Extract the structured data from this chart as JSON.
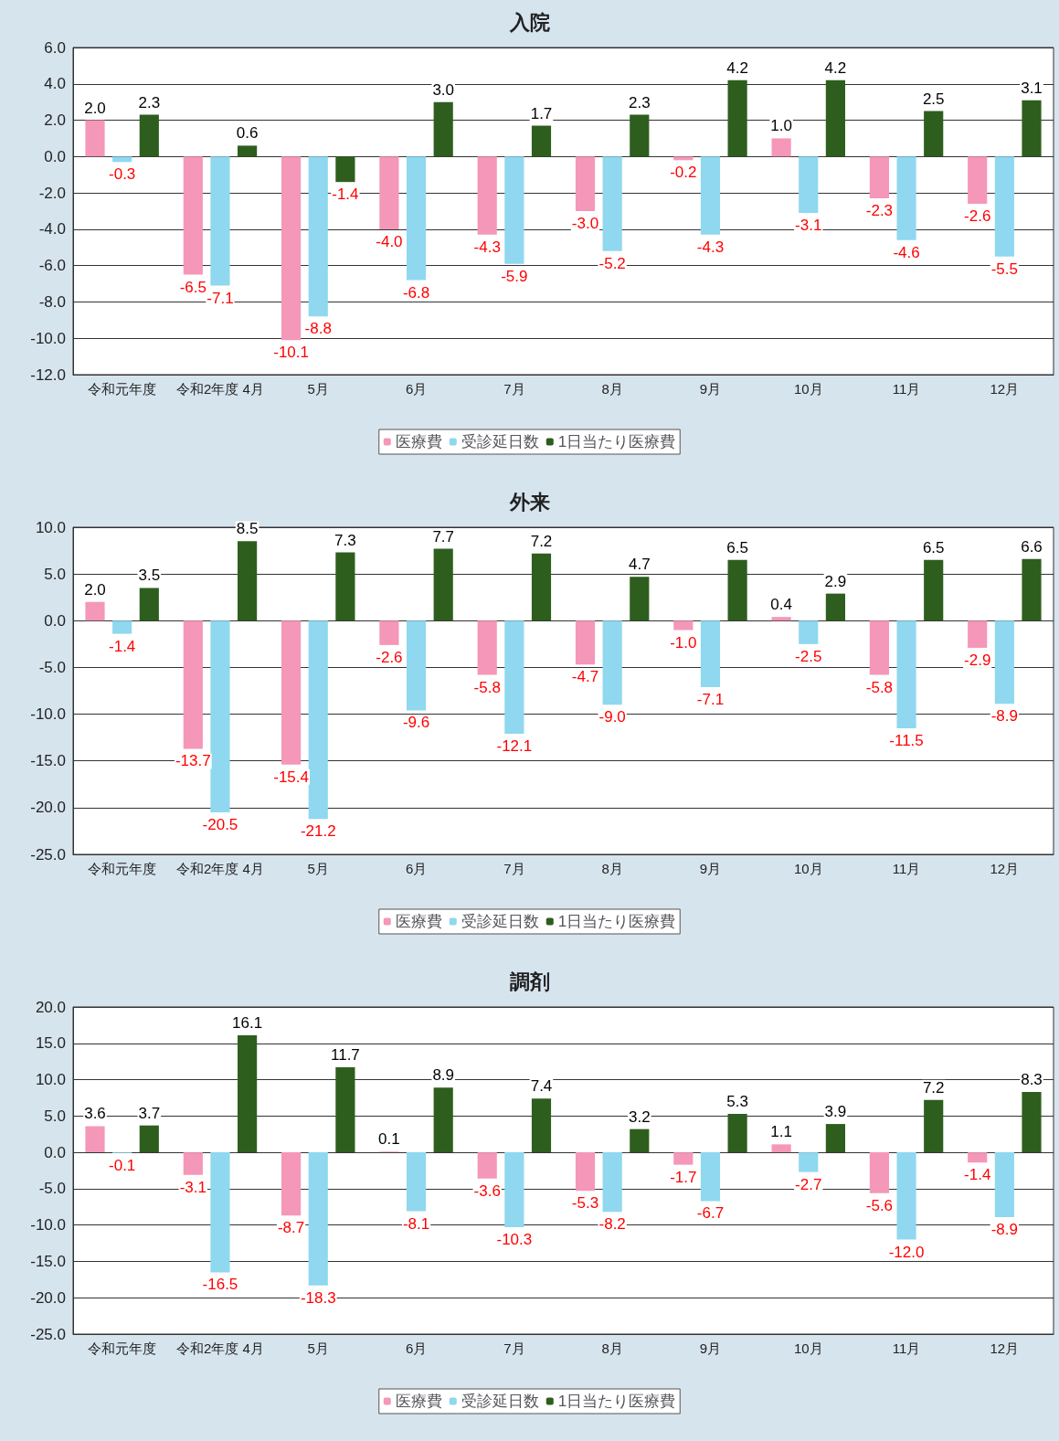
{
  "chart_data": [
    {
      "type": "bar",
      "title": "入院",
      "categories": [
        "令和元年度",
        "令和2年度 4月",
        "5月",
        "6月",
        "7月",
        "8月",
        "9月",
        "10月",
        "11月",
        "12月"
      ],
      "ylim": [
        -12,
        6
      ],
      "yticks": [
        {
          "value": -12,
          "label": "-12.0"
        },
        {
          "value": -10,
          "label": "-10.0"
        },
        {
          "value": -8,
          "label": "-8.0"
        },
        {
          "value": -6,
          "label": "-6.0"
        },
        {
          "value": -4,
          "label": "-4.0"
        },
        {
          "value": -2,
          "label": "-2.0"
        },
        {
          "value": 0,
          "label": "0.0"
        },
        {
          "value": 2,
          "label": "2.0"
        },
        {
          "value": 4,
          "label": "4.0"
        },
        {
          "value": 6,
          "label": "6.0"
        }
      ],
      "grid": "y",
      "legend": "bottom",
      "series": [
        {
          "name": "医療費",
          "color": "#f497b8",
          "values": [
            2.0,
            -6.5,
            -10.1,
            -4.0,
            -4.3,
            -3.0,
            -0.2,
            1.0,
            -2.3,
            -2.6
          ],
          "value_labels": [
            "2.0",
            "-6.5",
            "-10.1",
            "-4.0",
            "-4.3",
            "-3.0",
            "-0.2",
            "1.0",
            "-2.3",
            "-2.6"
          ]
        },
        {
          "name": "受診延日数",
          "color": "#8fd8ef",
          "values": [
            -0.3,
            -7.1,
            -8.8,
            -6.8,
            -5.9,
            -5.2,
            -4.3,
            -3.1,
            -4.6,
            -5.5
          ],
          "value_labels": [
            "-0.3",
            "-7.1",
            "-8.8",
            "-6.8",
            "-5.9",
            "-5.2",
            "-4.3",
            "-3.1",
            "-4.6",
            "-5.5"
          ]
        },
        {
          "name": "1日当たり医療費",
          "color": "#2e5e1e",
          "values": [
            2.3,
            0.6,
            -1.4,
            3.0,
            1.7,
            2.3,
            4.2,
            4.2,
            2.5,
            3.1
          ],
          "value_labels": [
            "2.3",
            "0.6",
            "-1.4",
            "3.0",
            "1.7",
            "2.3",
            "4.2",
            "4.2",
            "2.5",
            "3.1"
          ]
        }
      ]
    },
    {
      "type": "bar",
      "title": "外来",
      "categories": [
        "令和元年度",
        "令和2年度 4月",
        "5月",
        "6月",
        "7月",
        "8月",
        "9月",
        "10月",
        "11月",
        "12月"
      ],
      "ylim": [
        -25,
        10
      ],
      "yticks": [
        {
          "value": -25,
          "label": "-25.0"
        },
        {
          "value": -20,
          "label": "-20.0"
        },
        {
          "value": -15,
          "label": "-15.0"
        },
        {
          "value": -10,
          "label": "-10.0"
        },
        {
          "value": -5,
          "label": "-5.0"
        },
        {
          "value": 0,
          "label": "0.0"
        },
        {
          "value": 5,
          "label": "5.0"
        },
        {
          "value": 10,
          "label": "10.0"
        }
      ],
      "grid": "y",
      "legend": "bottom",
      "series": [
        {
          "name": "医療費",
          "color": "#f497b8",
          "values": [
            2.0,
            -13.7,
            -15.4,
            -2.6,
            -5.8,
            -4.7,
            -1.0,
            0.4,
            -5.8,
            -2.9
          ],
          "value_labels": [
            "2.0",
            "-13.7",
            "-15.4",
            "-2.6",
            "-5.8",
            "-4.7",
            "-1.0",
            "0.4",
            "-5.8",
            "-2.9"
          ]
        },
        {
          "name": "受診延日数",
          "color": "#8fd8ef",
          "values": [
            -1.4,
            -20.5,
            -21.2,
            -9.6,
            -12.1,
            -9.0,
            -7.1,
            -2.5,
            -11.5,
            -8.9
          ],
          "value_labels": [
            "-1.4",
            "-20.5",
            "-21.2",
            "-9.6",
            "-12.1",
            "-9.0",
            "-7.1",
            "-2.5",
            "-11.5",
            "-8.9"
          ]
        },
        {
          "name": "1日当たり医療費",
          "color": "#2e5e1e",
          "values": [
            3.5,
            8.5,
            7.3,
            7.7,
            7.2,
            4.7,
            6.5,
            2.9,
            6.5,
            6.6
          ],
          "value_labels": [
            "3.5",
            "8.5",
            "7.3",
            "7.7",
            "7.2",
            "4.7",
            "6.5",
            "2.9",
            "6.5",
            "6.6"
          ]
        }
      ]
    },
    {
      "type": "bar",
      "title": "調剤",
      "categories": [
        "令和元年度",
        "令和2年度 4月",
        "5月",
        "6月",
        "7月",
        "8月",
        "9月",
        "10月",
        "11月",
        "12月"
      ],
      "ylim": [
        -25,
        20
      ],
      "yticks": [
        {
          "value": -25,
          "label": "-25.0"
        },
        {
          "value": -20,
          "label": "-20.0"
        },
        {
          "value": -15,
          "label": "-15.0"
        },
        {
          "value": -10,
          "label": "-10.0"
        },
        {
          "value": -5,
          "label": "-5.0"
        },
        {
          "value": 0,
          "label": "0.0"
        },
        {
          "value": 5,
          "label": "5.0"
        },
        {
          "value": 10,
          "label": "10.0"
        },
        {
          "value": 15,
          "label": "15.0"
        },
        {
          "value": 20,
          "label": "20.0"
        }
      ],
      "grid": "y",
      "legend": "bottom",
      "series": [
        {
          "name": "医療費",
          "color": "#f497b8",
          "values": [
            3.6,
            -3.1,
            -8.7,
            0.1,
            -3.6,
            -5.3,
            -1.7,
            1.1,
            -5.6,
            -1.4
          ],
          "value_labels": [
            "3.6",
            "-3.1",
            "-8.7",
            "0.1",
            "-3.6",
            "-5.3",
            "-1.7",
            "1.1",
            "-5.6",
            "-1.4"
          ]
        },
        {
          "name": "受診延日数",
          "color": "#8fd8ef",
          "values": [
            -0.1,
            -16.5,
            -18.3,
            -8.1,
            -10.3,
            -8.2,
            -6.7,
            -2.7,
            -12.0,
            -8.9
          ],
          "value_labels": [
            "-0.1",
            "-16.5",
            "-18.3",
            "-8.1",
            "-10.3",
            "-8.2",
            "-6.7",
            "-2.7",
            "-12.0",
            "-8.9"
          ]
        },
        {
          "name": "1日当たり医療費",
          "color": "#2e5e1e",
          "values": [
            3.7,
            16.1,
            11.7,
            8.9,
            7.4,
            3.2,
            5.3,
            3.9,
            7.2,
            8.3
          ],
          "value_labels": [
            "3.7",
            "16.1",
            "11.7",
            "8.9",
            "7.4",
            "3.2",
            "5.3",
            "3.9",
            "7.2",
            "8.3"
          ]
        }
      ]
    }
  ]
}
